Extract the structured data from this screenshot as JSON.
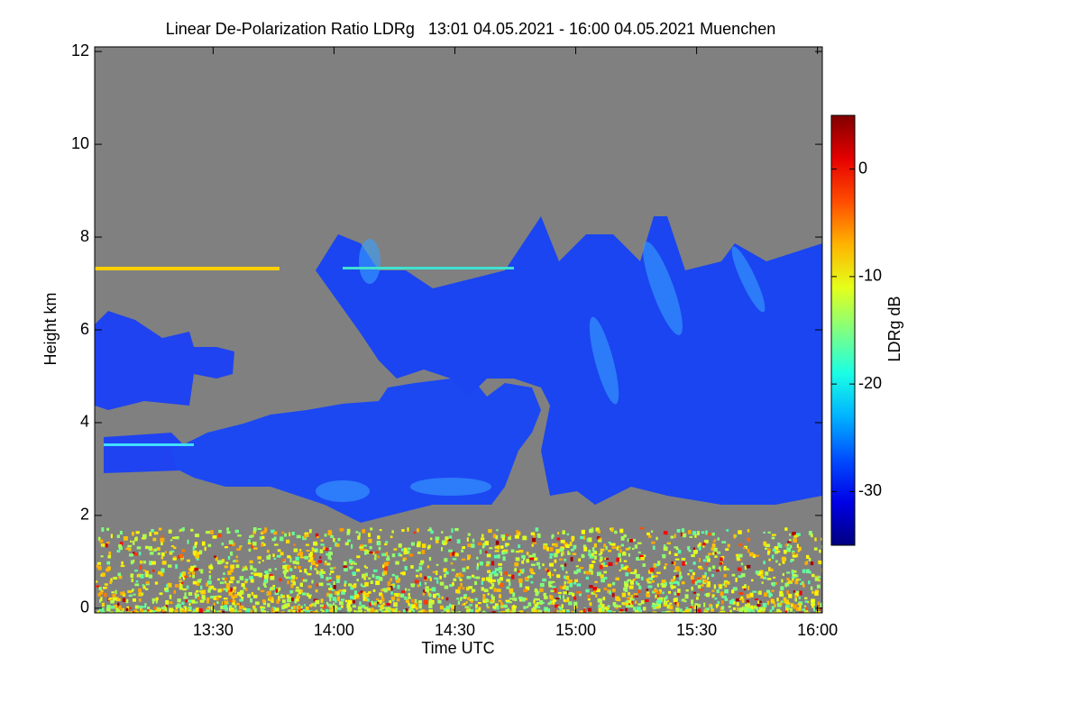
{
  "chart_data": {
    "type": "heatmap",
    "title": "Linear De-Polarization Ratio LDRg   13:01 04.05.2021 - 16:00 04.05.2021 Muenchen",
    "x_label": "Time UTC",
    "y_label": "Height km",
    "xlim": [
      13.01,
      16.02
    ],
    "xticks": [
      {
        "value": 13.5,
        "label": "13:30"
      },
      {
        "value": 14,
        "label": "14:00"
      },
      {
        "value": 14.5,
        "label": "14:30"
      },
      {
        "value": 15,
        "label": "15:00"
      },
      {
        "value": 15.5,
        "label": "15:30"
      },
      {
        "value": 16,
        "label": "16:00"
      }
    ],
    "ylim": [
      -0.1,
      12.1
    ],
    "yticks": [
      0,
      2,
      4,
      6,
      8,
      10,
      12
    ],
    "colorbar": {
      "label": "LDRg dB",
      "lim": [
        -35,
        5
      ],
      "ticks": [
        0,
        -10,
        -20,
        -30
      ],
      "colormap": "jet"
    }
  }
}
